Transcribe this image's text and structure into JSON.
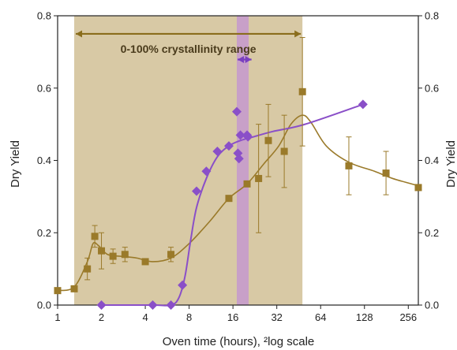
{
  "chart_data": {
    "type": "scatter",
    "title": "",
    "xlabel": "Oven time (hours), ²log scale",
    "ylabel": "Dry Yield",
    "ylabel_right": "Dry Yield",
    "x_scale": "log2",
    "xlim": [
      1,
      300
    ],
    "ylim": [
      0,
      0.8
    ],
    "x_ticks": [
      1,
      2,
      4,
      8,
      16,
      32,
      64,
      128,
      256
    ],
    "x_tick_labels": [
      "1",
      "2",
      "4",
      "8",
      "16",
      "32",
      "64",
      "128",
      "256"
    ],
    "y_ticks": [
      0,
      0.2,
      0.4,
      0.6,
      0.8
    ],
    "y_tick_labels": [
      "0.0",
      "0.2",
      "0.4",
      "0.6",
      "0.8"
    ],
    "grid": false,
    "regions": [
      {
        "x0": 1.3,
        "x1": 48,
        "color": "#d8c9a5"
      },
      {
        "x0": 17,
        "x1": 20.5,
        "color": "#c8a0c8"
      }
    ],
    "annotations": [
      {
        "text": "0-100% crystallinity range",
        "x0": 1.3,
        "x1": 48,
        "y": 0.75,
        "color": "#8a6d1c"
      },
      {
        "text": "",
        "x0": 16.8,
        "x1": 22,
        "y": 0.679,
        "color": "#7a3fc0"
      }
    ],
    "series": [
      {
        "marker": "square",
        "color": "#9a7a2a",
        "x": [
          1,
          1.3,
          1.6,
          1.8,
          2,
          2.4,
          2.9,
          4,
          6,
          15,
          20,
          24,
          28,
          36,
          48,
          100,
          180,
          300
        ],
        "y": [
          0.04,
          0.045,
          0.1,
          0.19,
          0.15,
          0.135,
          0.14,
          0.12,
          0.14,
          0.295,
          0.335,
          0.35,
          0.455,
          0.425,
          0.59,
          0.385,
          0.365,
          0.325
        ],
        "err": [
          0,
          0,
          0.03,
          0.03,
          0.05,
          0.02,
          0.02,
          0,
          0.02,
          0,
          0,
          0.15,
          0.1,
          0.1,
          0.15,
          0.08,
          0.06,
          0
        ],
        "smooth_x": [
          1,
          1.3,
          1.6,
          1.75,
          1.9,
          2.2,
          2.7,
          3.5,
          4.5,
          6,
          8,
          11,
          15,
          20,
          26,
          33,
          40,
          48,
          55,
          70,
          100,
          150,
          200,
          300
        ],
        "smooth_y": [
          0.04,
          0.05,
          0.12,
          0.17,
          0.165,
          0.14,
          0.135,
          0.13,
          0.12,
          0.13,
          0.17,
          0.23,
          0.295,
          0.335,
          0.39,
          0.44,
          0.5,
          0.525,
          0.505,
          0.44,
          0.395,
          0.37,
          0.35,
          0.33
        ]
      },
      {
        "marker": "diamond",
        "color": "#8a4fc8",
        "x": [
          2,
          4.5,
          6,
          7.2,
          9,
          10.5,
          12.5,
          15,
          17,
          17.3,
          17.6,
          18,
          20,
          20.3,
          125
        ],
        "y": [
          0,
          0,
          0,
          0.055,
          0.315,
          0.37,
          0.425,
          0.44,
          0.535,
          0.42,
          0.405,
          0.47,
          0.47,
          0.465,
          0.555
        ],
        "smooth_x": [
          2,
          4.5,
          6,
          6.8,
          7.5,
          8.2,
          9,
          10.5,
          12.5,
          15,
          18,
          22,
          30,
          50,
          125
        ],
        "smooth_y": [
          0,
          0,
          0,
          0.02,
          0.08,
          0.18,
          0.27,
          0.35,
          0.41,
          0.44,
          0.455,
          0.465,
          0.48,
          0.5,
          0.555
        ]
      }
    ]
  }
}
